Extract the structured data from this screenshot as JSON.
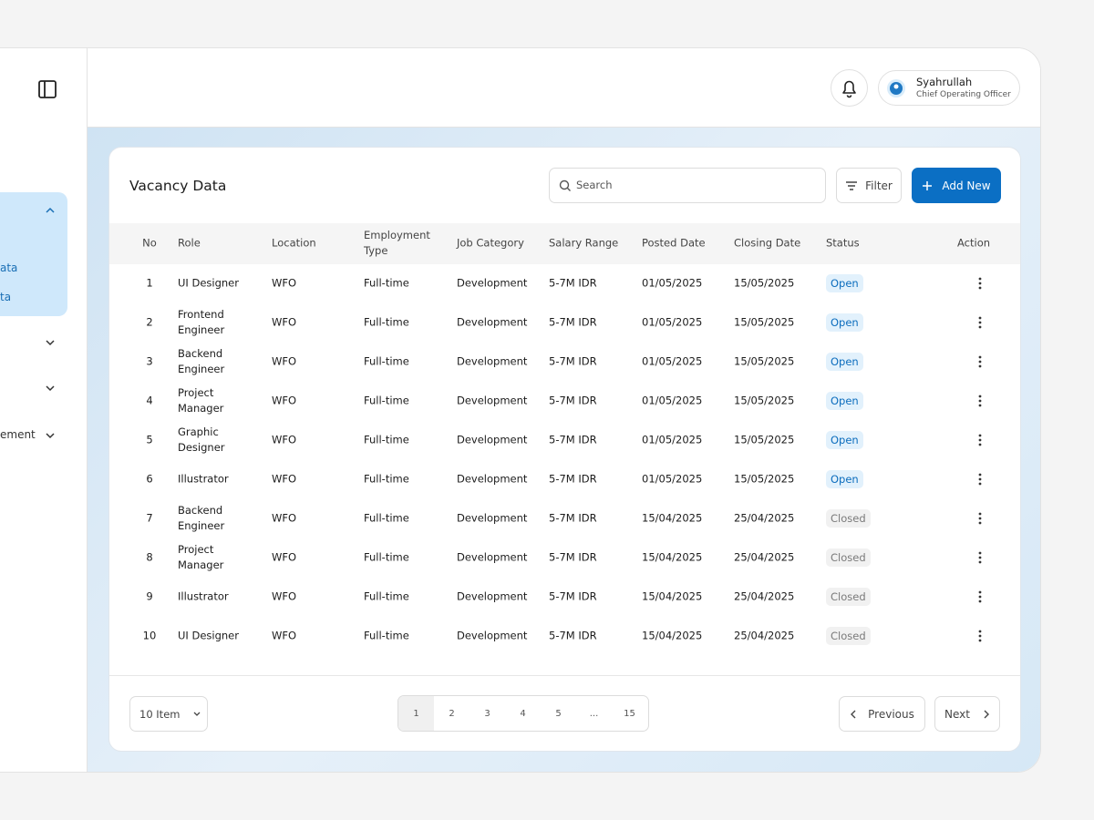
{
  "sidebar": {
    "menu": [
      {
        "label": "ata"
      },
      {
        "label": "ta"
      },
      {
        "label": "ement"
      }
    ]
  },
  "header": {
    "user": {
      "name": "Syahrullah",
      "role": "Chief Operating Officer"
    }
  },
  "card": {
    "title": "Vacancy Data",
    "search_placeholder": "Search",
    "filter": "Filter",
    "add_button": "Add New"
  },
  "table": {
    "columns": [
      "No",
      "Role",
      "Location",
      "Employment Type",
      "Job Category",
      "Salary Range",
      "Posted Date",
      "Closing Date",
      "Status",
      "Action"
    ],
    "rows": [
      [
        1,
        "UI Designer",
        "WFO",
        "Full-time",
        "Development",
        "5-7M IDR",
        "01/05/2025",
        "15/05/2025",
        "Open"
      ],
      [
        2,
        "Frontend Engineer",
        "WFO",
        "Full-time",
        "Development",
        "5-7M IDR",
        "01/05/2025",
        "15/05/2025",
        "Open"
      ],
      [
        3,
        "Backend Engineer",
        "WFO",
        "Full-time",
        "Development",
        "5-7M IDR",
        "01/05/2025",
        "15/05/2025",
        "Open"
      ],
      [
        4,
        "Project Manager",
        "WFO",
        "Full-time",
        "Development",
        "5-7M IDR",
        "01/05/2025",
        "15/05/2025",
        "Open"
      ],
      [
        5,
        "Graphic Designer",
        "WFO",
        "Full-time",
        "Development",
        "5-7M IDR",
        "01/05/2025",
        "15/05/2025",
        "Open"
      ],
      [
        6,
        "Illustrator",
        "WFO",
        "Full-time",
        "Development",
        "5-7M IDR",
        "01/05/2025",
        "15/05/2025",
        "Open"
      ],
      [
        7,
        "Backend Engineer",
        "WFO",
        "Full-time",
        "Development",
        "5-7M IDR",
        "15/04/2025",
        "25/04/2025",
        "Closed"
      ],
      [
        8,
        "Project Manager",
        "WFO",
        "Full-time",
        "Development",
        "5-7M IDR",
        "15/04/2025",
        "25/04/2025",
        "Closed"
      ],
      [
        9,
        "Illustrator",
        "WFO",
        "Full-time",
        "Development",
        "5-7M IDR",
        "15/04/2025",
        "25/04/2025",
        "Closed"
      ],
      [
        10,
        "UI Designer",
        "WFO",
        "Full-time",
        "Development",
        "5-7M IDR",
        "15/04/2025",
        "25/04/2025",
        "Closed"
      ]
    ],
    "status_styles": {
      "Open": {
        "color": "#0b6cbd",
        "bg": "#e2f1fc"
      },
      "Closed": {
        "color": "#7a7a7a",
        "bg": "#f1f1f1"
      }
    }
  },
  "footer": {
    "page_size": "10 Item",
    "pages": [
      "1",
      "2",
      "3",
      "4",
      "5",
      "...",
      "15"
    ],
    "previous": "Previous",
    "next": "Next"
  }
}
